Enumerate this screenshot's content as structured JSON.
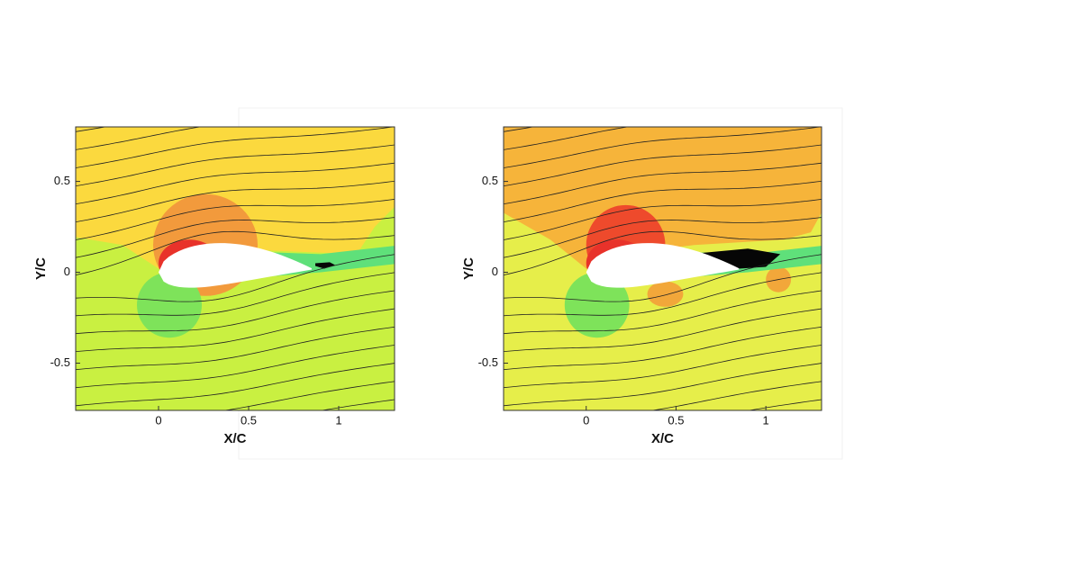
{
  "chart_data": [
    {
      "type": "contour",
      "xlabel": "X/C",
      "ylabel": "Y/C",
      "xlim": [
        -0.46,
        1.31
      ],
      "ylim": [
        -0.76,
        0.8
      ],
      "xticks": [
        0,
        0.5,
        1
      ],
      "yticks": [
        0.5,
        0,
        -0.5
      ]
    },
    {
      "type": "contour",
      "xlabel": "X/C",
      "ylabel": "Y/C",
      "xlim": [
        -0.46,
        1.31
      ],
      "ylim": [
        -0.76,
        0.8
      ],
      "xticks": [
        0,
        0.5,
        1
      ],
      "yticks": [
        0.5,
        0,
        -0.5
      ]
    }
  ]
}
